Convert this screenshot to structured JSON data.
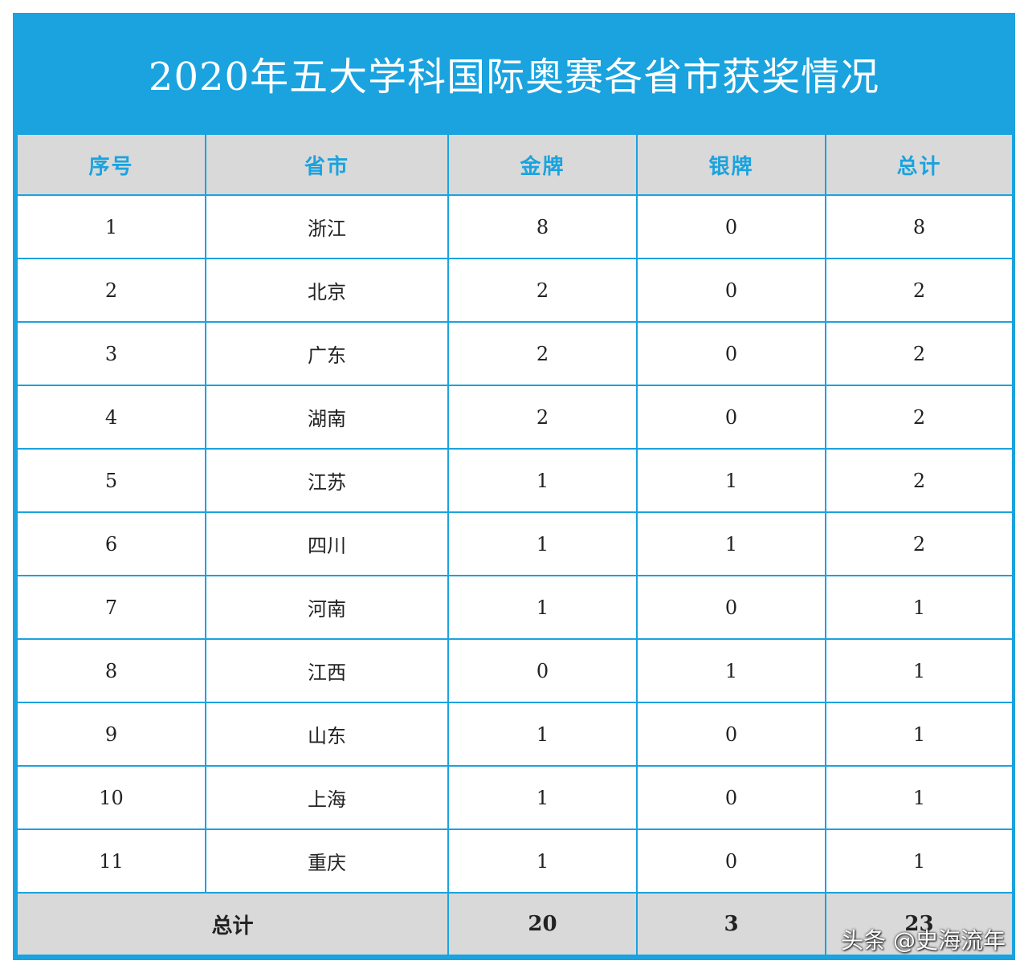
{
  "title": "2020年五大学科国际奥赛各省市获奖情况",
  "headers": [
    "序号",
    "省市",
    "金牌",
    "银牌",
    "总计"
  ],
  "rows": [
    [
      "1",
      "浙江",
      "8",
      "0",
      "8"
    ],
    [
      "2",
      "北京",
      "2",
      "0",
      "2"
    ],
    [
      "3",
      "广东",
      "2",
      "0",
      "2"
    ],
    [
      "4",
      "湖南",
      "2",
      "0",
      "2"
    ],
    [
      "5",
      "江苏",
      "1",
      "1",
      "2"
    ],
    [
      "6",
      "四川",
      "1",
      "1",
      "2"
    ],
    [
      "7",
      "河南",
      "1",
      "0",
      "1"
    ],
    [
      "8",
      "江西",
      "0",
      "1",
      "1"
    ],
    [
      "9",
      "山东",
      "1",
      "0",
      "1"
    ],
    [
      "10",
      "上海",
      "1",
      "0",
      "1"
    ],
    [
      "11",
      "重庆",
      "1",
      "0",
      "1"
    ]
  ],
  "totals": {
    "label": "总计",
    "gold": "20",
    "silver": "3",
    "total": "23"
  },
  "watermark": "头条 @史海流年",
  "colors": {
    "accent": "#1aa3df",
    "header_bg": "#d9d9d9"
  }
}
